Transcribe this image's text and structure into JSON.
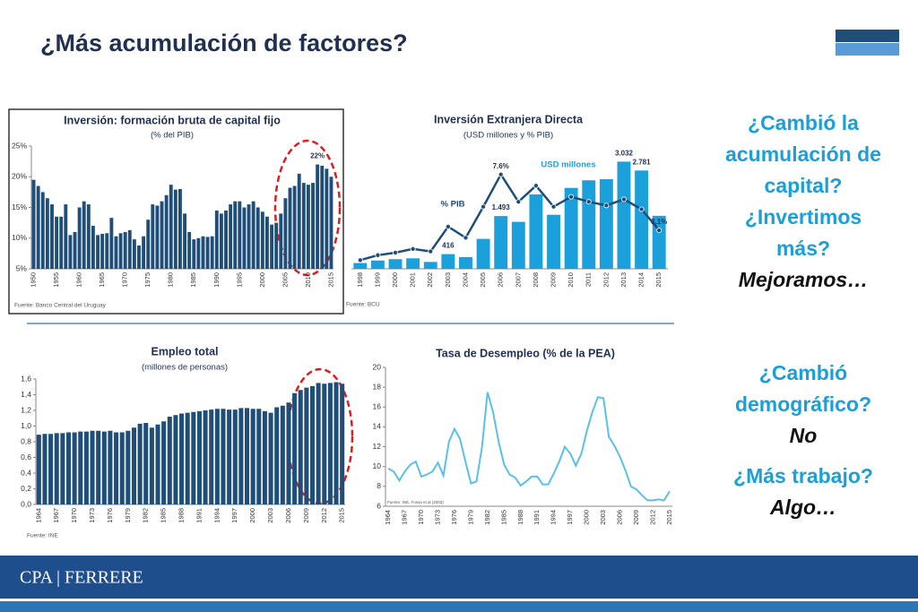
{
  "slide": {
    "title": "¿Más acumulación de factores?",
    "side_blocks": [
      {
        "lines": [
          "¿Cambió  la",
          "acumulación de",
          "capital?",
          "¿Invertimos",
          "más?"
        ],
        "answer": "Mejoramos…"
      },
      {
        "lines": [
          "¿Cambió",
          "demográfico?"
        ],
        "answer": "No"
      },
      {
        "lines": [
          "¿Más trabajo?"
        ],
        "answer": "Algo…"
      }
    ],
    "footer": "CPA | FERRERE"
  },
  "chart_data": [
    {
      "type": "bar",
      "title": "Inversión: formación bruta de capital fijo",
      "subtitle": "(% del PIB)",
      "source": "Fuente: Banco Central del Uruguay",
      "color": "#1f4e79",
      "categories": [
        "1950",
        null,
        null,
        null,
        null,
        "1955",
        null,
        null,
        null,
        null,
        "1960",
        null,
        null,
        null,
        null,
        "1965",
        null,
        null,
        null,
        null,
        "1970",
        null,
        null,
        null,
        null,
        "1975",
        null,
        null,
        null,
        null,
        "1980",
        null,
        null,
        null,
        null,
        "1985",
        null,
        null,
        null,
        null,
        "1990",
        null,
        null,
        null,
        null,
        "1995",
        null,
        null,
        null,
        null,
        "2000",
        null,
        null,
        null,
        null,
        "2005",
        null,
        null,
        null,
        null,
        "2010",
        null,
        null,
        null,
        null,
        "2015"
      ],
      "values": [
        19.5,
        18.5,
        17.5,
        16.5,
        15.5,
        13.5,
        13.5,
        15.5,
        10.5,
        11,
        15,
        16,
        15.5,
        12,
        10.5,
        10.7,
        10.8,
        13.3,
        10.3,
        10.8,
        11,
        11.3,
        9.8,
        8.8,
        10.3,
        13,
        15.5,
        15.3,
        16,
        17,
        18.7,
        17.9,
        18,
        14,
        11,
        9.8,
        10,
        10.3,
        10.2,
        10.3,
        14.5,
        14,
        14.5,
        15.5,
        16,
        16,
        15,
        15.5,
        16,
        15,
        14.3,
        13.5,
        12.2,
        12.5,
        14,
        16.5,
        18.2,
        18.5,
        20.5,
        19,
        18.7,
        19,
        22,
        21.8,
        21.3,
        20
      ],
      "value_labels": [
        null,
        null,
        null,
        null,
        null,
        null,
        null,
        null,
        null,
        null,
        null,
        null,
        null,
        null,
        null,
        null,
        null,
        null,
        null,
        null,
        null,
        null,
        null,
        null,
        null,
        null,
        null,
        null,
        null,
        null,
        null,
        null,
        null,
        null,
        null,
        null,
        null,
        null,
        null,
        null,
        null,
        null,
        null,
        null,
        null,
        null,
        null,
        null,
        null,
        null,
        null,
        null,
        null,
        null,
        null,
        null,
        null,
        null,
        null,
        null,
        null,
        null,
        "22%",
        null,
        null,
        null
      ],
      "ylim": [
        5,
        25
      ],
      "yticks": [
        {
          "value": 5,
          "label": "5%"
        },
        {
          "value": 10,
          "label": "10%"
        },
        {
          "value": 15,
          "label": "15%"
        },
        {
          "value": 20,
          "label": "20%"
        },
        {
          "value": 25,
          "label": "25%"
        }
      ]
    },
    {
      "type": "combo",
      "title": "Inversión Extranjera Directa",
      "subtitle": "(USD millones y % PIB)",
      "source": "Fuente: BCU",
      "categories": [
        "1998",
        "1999",
        "2000",
        "2001",
        "2002",
        "2003",
        "2004",
        "2005",
        "2006",
        "2007",
        "2008",
        "2009",
        "2010",
        "2011",
        "2012",
        "2013",
        "2014",
        "2015"
      ],
      "series": [
        {
          "name": "USD millones",
          "type": "bar",
          "color": "#1ba0dc",
          "values": [
            164,
            235,
            274,
            297,
            194,
            416,
            332,
            847,
            1493,
            1329,
            2106,
            1529,
            2289,
            2504,
            2536,
            3032,
            2781,
            1500
          ],
          "value_labels": [
            null,
            null,
            null,
            null,
            null,
            "416",
            null,
            null,
            "1.493",
            null,
            null,
            null,
            null,
            null,
            null,
            "3.032",
            "2.781",
            null
          ]
        },
        {
          "name": "% PIB",
          "type": "line",
          "color": "#1f4e79",
          "markers": true,
          "values": [
            0.7,
            1.1,
            1.3,
            1.6,
            1.4,
            3.4,
            2.5,
            5.0,
            7.6,
            5.4,
            6.7,
            5.0,
            5.8,
            5.4,
            5.1,
            5.6,
            4.8,
            3.1
          ],
          "value_labels": [
            null,
            null,
            null,
            null,
            null,
            null,
            null,
            null,
            "7.6%",
            null,
            null,
            null,
            null,
            null,
            null,
            null,
            null,
            "3,1%"
          ]
        }
      ]
    },
    {
      "type": "bar",
      "title": "Empleo total",
      "subtitle": "(millones de personas)",
      "source": "Fuente: INE",
      "color": "#1f4e79",
      "categories": [
        "1964",
        null,
        null,
        "1967",
        null,
        null,
        "1970",
        null,
        null,
        "1973",
        null,
        null,
        "1976",
        null,
        null,
        "1979",
        null,
        null,
        "1982",
        null,
        null,
        "1985",
        null,
        null,
        "1988",
        null,
        null,
        "1991",
        null,
        null,
        "1994",
        null,
        null,
        "1997",
        null,
        null,
        "2000",
        null,
        null,
        "2003",
        null,
        null,
        "2006",
        null,
        null,
        "2009",
        null,
        null,
        "2012",
        null,
        null,
        "2015"
      ],
      "values": [
        0.89,
        0.9,
        0.9,
        0.91,
        0.91,
        0.92,
        0.92,
        0.93,
        0.93,
        0.94,
        0.94,
        0.93,
        0.94,
        0.92,
        0.92,
        0.94,
        0.98,
        1.03,
        1.04,
        0.98,
        1.02,
        1.06,
        1.12,
        1.14,
        1.16,
        1.17,
        1.18,
        1.19,
        1.2,
        1.21,
        1.22,
        1.22,
        1.21,
        1.21,
        1.23,
        1.23,
        1.22,
        1.22,
        1.19,
        1.17,
        1.24,
        1.26,
        1.3,
        1.42,
        1.46,
        1.49,
        1.51,
        1.55,
        1.54,
        1.55,
        1.56,
        1.54
      ],
      "ylim": [
        0,
        1.6
      ],
      "yticks": [
        {
          "value": 0,
          "label": "0,0"
        },
        {
          "value": 0.2,
          "label": "0,2"
        },
        {
          "value": 0.4,
          "label": "0,4"
        },
        {
          "value": 0.6,
          "label": "0,6"
        },
        {
          "value": 0.8,
          "label": "0,8"
        },
        {
          "value": 1.0,
          "label": "1,0"
        },
        {
          "value": 1.2,
          "label": "1,2"
        },
        {
          "value": 1.4,
          "label": "1,4"
        },
        {
          "value": 1.6,
          "label": "1,6"
        }
      ]
    },
    {
      "type": "line",
      "title": "Tasa de Desempleo (% de la PEA)",
      "source": "Fuente: INE, Fossa et al (2003)",
      "color": "#5bc0e8",
      "categories": [
        "1964",
        null,
        null,
        "1967",
        null,
        null,
        "1970",
        null,
        null,
        "1973",
        null,
        null,
        "1976",
        null,
        null,
        "1979",
        null,
        null,
        "1982",
        null,
        null,
        "1985",
        null,
        null,
        "1988",
        null,
        null,
        "1991",
        null,
        null,
        "1994",
        null,
        null,
        "1997",
        null,
        null,
        "2000",
        null,
        null,
        "2003",
        null,
        null,
        "2006",
        null,
        null,
        "2009",
        null,
        null,
        "2012",
        null,
        null,
        "2015"
      ],
      "values": [
        9.8,
        9.5,
        8.6,
        9.5,
        10.2,
        10.5,
        9.0,
        9.2,
        9.5,
        10.4,
        9.1,
        12.5,
        13.8,
        12.8,
        10.5,
        8.3,
        8.5,
        12.0,
        17.5,
        15.5,
        12.5,
        10.2,
        9.2,
        8.9,
        8.1,
        8.5,
        9.0,
        9.0,
        8.2,
        8.2,
        9.3,
        10.5,
        12.0,
        11.3,
        10.1,
        11.3,
        13.6,
        15.5,
        17.0,
        16.9,
        13.0,
        12.1,
        11.0,
        9.6,
        8.0,
        7.7,
        7.1,
        6.6,
        6.6,
        6.7,
        6.6,
        7.5
      ],
      "ylim": [
        6,
        20
      ],
      "yticks": [
        6,
        8,
        10,
        12,
        14,
        16,
        18,
        20
      ]
    }
  ]
}
